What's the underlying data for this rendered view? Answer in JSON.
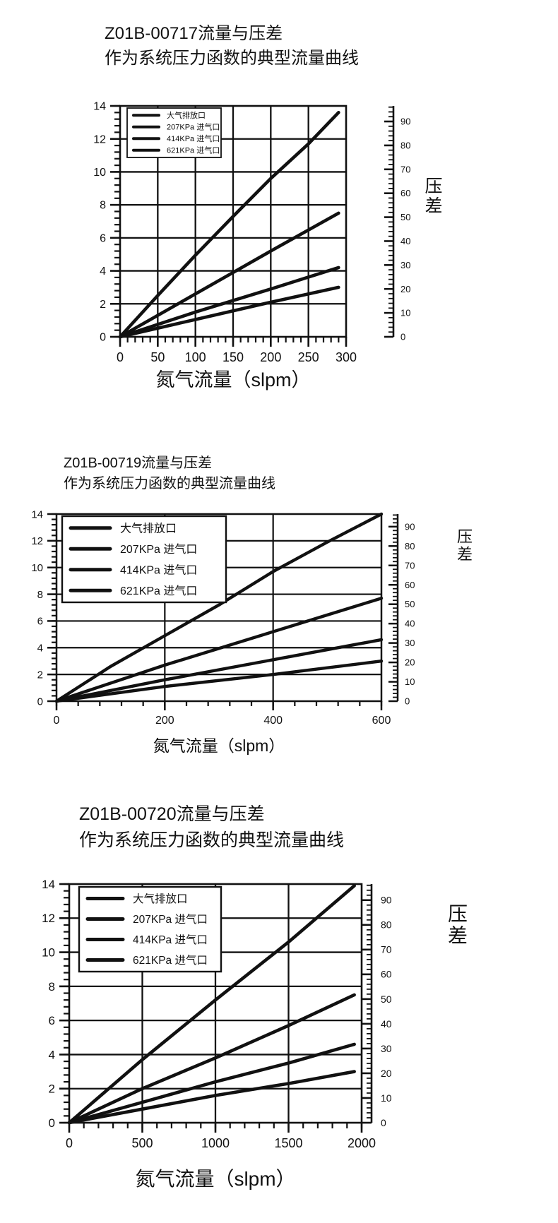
{
  "page": {
    "background": "#ffffff",
    "ink_color": "#111111"
  },
  "chart_data": [
    {
      "type": "line",
      "title": "Z01B-00717流量与压差",
      "subtitle": "作为系统压力函数的典型流量曲线",
      "xlabel": "氮气流量（slpm）",
      "right_ylabel": "压差",
      "grid": true,
      "x_axis": {
        "min": 0,
        "max": 300,
        "tick_labels": [
          0,
          50,
          100,
          150,
          200,
          250,
          300
        ],
        "minor_step": 10
      },
      "left_y_axis": {
        "min": 0,
        "max": 14,
        "tick_labels": [
          0,
          2,
          4,
          6,
          8,
          10,
          12,
          14
        ],
        "minor_step": 0.4
      },
      "right_y_axis": {
        "min": 0,
        "max": 96.5,
        "tick_labels": [
          0,
          10,
          20,
          30,
          40,
          50,
          60,
          70,
          80,
          90
        ],
        "minor_step": 2
      },
      "legend": {
        "position": "top-left",
        "entries": [
          "大气排放口",
          "207KPa 进气口",
          "414KPa 进气口",
          "621KPa 进气口"
        ]
      },
      "series": [
        {
          "name": "大气排放口",
          "color": "#111111",
          "points": [
            [
              0,
              0
            ],
            [
              50,
              2.5
            ],
            [
              100,
              4.95
            ],
            [
              150,
              7.3
            ],
            [
              200,
              9.6
            ],
            [
              250,
              11.7
            ],
            [
              290,
              13.6
            ]
          ]
        },
        {
          "name": "207KPa 进气口",
          "color": "#111111",
          "points": [
            [
              0,
              0
            ],
            [
              100,
              2.6
            ],
            [
              200,
              5.2
            ],
            [
              290,
              7.5
            ]
          ]
        },
        {
          "name": "414KPa 进气口",
          "color": "#111111",
          "points": [
            [
              0,
              0
            ],
            [
              100,
              1.5
            ],
            [
              200,
              2.9
            ],
            [
              290,
              4.2
            ]
          ]
        },
        {
          "name": "621KPa 进气口",
          "color": "#111111",
          "points": [
            [
              0,
              0
            ],
            [
              100,
              1.05
            ],
            [
              200,
              2.1
            ],
            [
              290,
              3.0
            ]
          ]
        }
      ]
    },
    {
      "type": "line",
      "title": "Z01B-00719流量与压差",
      "subtitle": "作为系统压力函数的典型流量曲线",
      "xlabel": "氮气流量（slpm）",
      "right_ylabel": "压差",
      "grid": true,
      "x_axis": {
        "min": 0,
        "max": 600,
        "tick_labels": [
          0,
          200,
          400,
          600
        ],
        "minor_step": 40
      },
      "left_y_axis": {
        "min": 0,
        "max": 14,
        "tick_labels": [
          0,
          2,
          4,
          6,
          8,
          10,
          12,
          14
        ],
        "minor_step": 0.4
      },
      "right_y_axis": {
        "min": 0,
        "max": 96.5,
        "tick_labels": [
          0,
          10,
          20,
          30,
          40,
          50,
          60,
          70,
          80,
          90
        ],
        "minor_step": 2
      },
      "legend": {
        "position": "top-left",
        "entries": [
          "大气排放口",
          "207KPa 进气口",
          "414KPa 进气口",
          "621KPa 进气口"
        ]
      },
      "series": [
        {
          "name": "大气排放口",
          "color": "#111111",
          "points": [
            [
              0,
              0
            ],
            [
              100,
              2.6
            ],
            [
              200,
              4.9
            ],
            [
              300,
              7.2
            ],
            [
              400,
              9.7
            ],
            [
              500,
              11.9
            ],
            [
              600,
              14.0
            ]
          ]
        },
        {
          "name": "207KPa 进气口",
          "color": "#111111",
          "points": [
            [
              0,
              0
            ],
            [
              200,
              2.7
            ],
            [
              400,
              5.2
            ],
            [
              600,
              7.7
            ]
          ]
        },
        {
          "name": "414KPa 进气口",
          "color": "#111111",
          "points": [
            [
              0,
              0
            ],
            [
              200,
              1.6
            ],
            [
              400,
              3.1
            ],
            [
              600,
              4.6
            ]
          ]
        },
        {
          "name": "621KPa 进气口",
          "color": "#111111",
          "points": [
            [
              0,
              0
            ],
            [
              200,
              1.1
            ],
            [
              400,
              2.0
            ],
            [
              600,
              3.0
            ]
          ]
        }
      ]
    },
    {
      "type": "line",
      "title": "Z01B-00720流量与压差",
      "subtitle": "作为系统压力函数的典型流量曲线",
      "xlabel": "氮气流量（slpm）",
      "right_ylabel": "压差",
      "grid": true,
      "x_axis": {
        "min": 0,
        "max": 2000,
        "tick_labels": [
          0,
          500,
          1000,
          1500,
          2000
        ],
        "minor_step": 100
      },
      "left_y_axis": {
        "min": 0,
        "max": 14,
        "tick_labels": [
          0,
          2,
          4,
          6,
          8,
          10,
          12,
          14
        ],
        "minor_step": 0.4
      },
      "right_y_axis": {
        "min": 0,
        "max": 96.5,
        "tick_labels": [
          0,
          10,
          20,
          30,
          40,
          50,
          60,
          70,
          80,
          90
        ],
        "minor_step": 2
      },
      "legend": {
        "position": "top-left",
        "entries": [
          "大气排放口",
          "207KPa 进气口",
          "414KPa 进气口",
          "621KPa 进气口"
        ]
      },
      "series": [
        {
          "name": "大气排放口",
          "color": "#111111",
          "points": [
            [
              0,
              0
            ],
            [
              500,
              3.7
            ],
            [
              1000,
              7.2
            ],
            [
              1500,
              10.6
            ],
            [
              1950,
              13.9
            ]
          ]
        },
        {
          "name": "207KPa 进气口",
          "color": "#111111",
          "points": [
            [
              0,
              0
            ],
            [
              500,
              2.0
            ],
            [
              1000,
              3.8
            ],
            [
              1500,
              5.7
            ],
            [
              1950,
              7.5
            ]
          ]
        },
        {
          "name": "414KPa 进气口",
          "color": "#111111",
          "points": [
            [
              0,
              0
            ],
            [
              500,
              1.2
            ],
            [
              1000,
              2.4
            ],
            [
              1500,
              3.5
            ],
            [
              1950,
              4.6
            ]
          ]
        },
        {
          "name": "621KPa 进气口",
          "color": "#111111",
          "points": [
            [
              0,
              0
            ],
            [
              500,
              0.8
            ],
            [
              1000,
              1.6
            ],
            [
              1500,
              2.3
            ],
            [
              1950,
              3.0
            ]
          ]
        }
      ]
    }
  ]
}
